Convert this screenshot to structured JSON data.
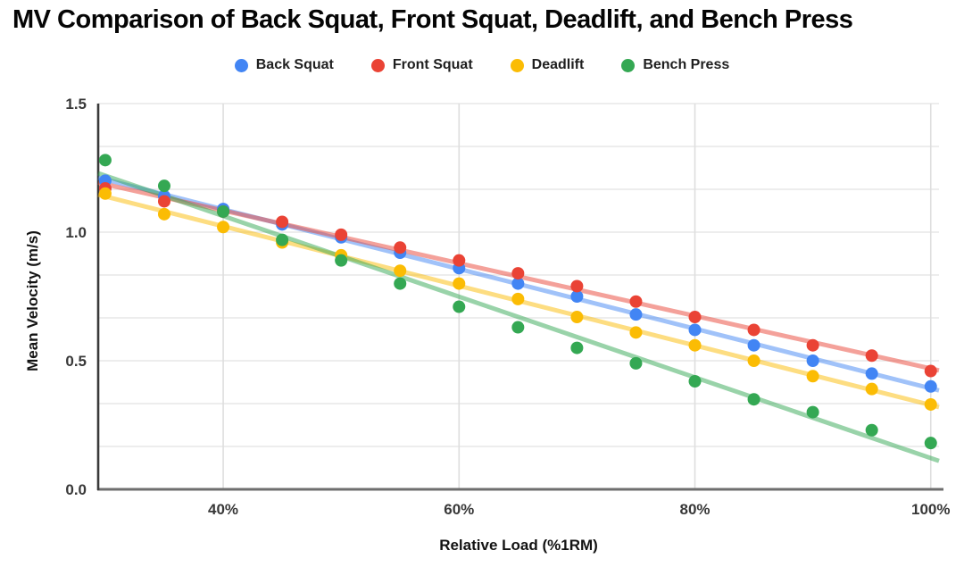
{
  "page": {
    "background": "#ffffff"
  },
  "chart_data": {
    "type": "scatter",
    "title": "MV Comparison of Back Squat, Front Squat, Deadlift, and Bench Press",
    "xlabel": "Relative Load (%1RM)",
    "ylabel": "Mean Velocity (m/s)",
    "legend_position": "top",
    "grid": "on",
    "trendlines": "linear",
    "xlim": [
      29.4,
      100.7
    ],
    "ylim": [
      0,
      1.5
    ],
    "x_tick_values": [
      40,
      60,
      80,
      100
    ],
    "x_tick_labels": [
      "40%",
      "60%",
      "80%",
      "100%"
    ],
    "y_tick_values": [
      0,
      0.5,
      1,
      1.5
    ],
    "y_tick_labels": [
      "0.0",
      "0.5",
      "1.0",
      "1.5"
    ],
    "x": [
      30,
      35,
      40,
      45,
      50,
      55,
      60,
      65,
      70,
      75,
      80,
      85,
      90,
      95,
      100
    ],
    "series": [
      {
        "name": "Back Squat",
        "color": "#4285F4",
        "marker": "circle",
        "values": [
          1.2,
          1.14,
          1.09,
          1.03,
          0.98,
          0.92,
          0.86,
          0.8,
          0.75,
          0.68,
          0.62,
          0.56,
          0.5,
          0.45,
          0.4
        ]
      },
      {
        "name": "Front Squat",
        "color": "#EA4335",
        "marker": "circle",
        "values": [
          1.17,
          1.12,
          1.08,
          1.04,
          0.99,
          0.94,
          0.89,
          0.84,
          0.79,
          0.73,
          0.67,
          0.62,
          0.56,
          0.52,
          0.46
        ]
      },
      {
        "name": "Deadlift",
        "color": "#FBBC04",
        "marker": "circle",
        "values": [
          1.15,
          1.07,
          1.02,
          0.96,
          0.91,
          0.85,
          0.8,
          0.74,
          0.67,
          0.61,
          0.56,
          0.5,
          0.44,
          0.39,
          0.33
        ]
      },
      {
        "name": "Bench Press",
        "color": "#34A853",
        "marker": "circle",
        "values": [
          1.28,
          1.18,
          1.08,
          0.97,
          0.89,
          0.8,
          0.71,
          0.63,
          0.55,
          0.49,
          0.42,
          0.35,
          0.3,
          0.23,
          0.18
        ]
      }
    ]
  }
}
